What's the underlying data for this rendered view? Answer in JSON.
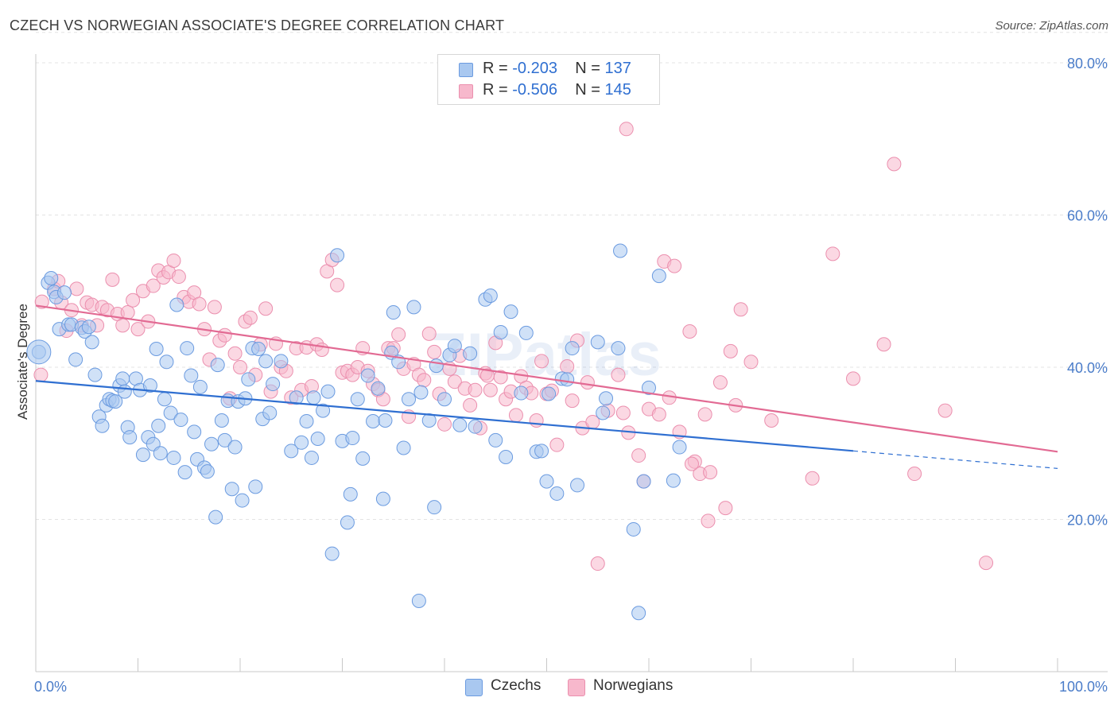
{
  "header": {
    "title": "CZECH VS NORWEGIAN ASSOCIATE'S DEGREE CORRELATION CHART",
    "source": "Source: ZipAtlas.com"
  },
  "watermark": "ZIPatlas",
  "legend": {
    "rows": [
      {
        "r_label": "R =",
        "r_value": "-0.203",
        "n_label": "N =",
        "n_value": "137"
      },
      {
        "r_label": "R =",
        "r_value": "-0.506",
        "n_label": "N =",
        "n_value": "145"
      }
    ]
  },
  "bottom_legend": {
    "czechs": "Czechs",
    "norwegians": "Norwegians"
  },
  "colors": {
    "czech_fill": "#a9c8f0",
    "czech_stroke": "#6b9be0",
    "czech_line": "#2f6fd1",
    "norwegian_fill": "#f7b8cc",
    "norwegian_stroke": "#eb8fae",
    "norwegian_line": "#e26a93",
    "grid": "#e3e3e3",
    "tick_label": "#4a7cc9"
  },
  "chart_data": {
    "type": "scatter",
    "title": "CZECH VS NORWEGIAN ASSOCIATE'S DEGREE CORRELATION CHART",
    "ylabel": "Associate's Degree",
    "xlabel": "",
    "xlim": [
      0,
      100
    ],
    "ylim": [
      0,
      84
    ],
    "x_tick_labels": [
      "0.0%",
      "100.0%"
    ],
    "y_ticks": [
      20,
      40,
      60,
      80
    ],
    "y_tick_labels": [
      "20.0%",
      "40.0%",
      "60.0%",
      "80.0%"
    ],
    "grid": true,
    "legend_position": "top-center",
    "series": [
      {
        "name": "Czechs",
        "R": -0.203,
        "N": 137,
        "trend": {
          "x_start": 0,
          "y_start": 38.2,
          "x_solid_end": 80,
          "y_solid_end": 29.0,
          "x_end": 100,
          "y_end": 26.7
        },
        "points": [
          [
            0.3,
            42
          ],
          [
            1.2,
            51.1
          ],
          [
            1.5,
            51.7
          ],
          [
            1.8,
            49.9
          ],
          [
            2,
            49.2
          ],
          [
            2.3,
            45
          ],
          [
            2.8,
            49.8
          ],
          [
            3.2,
            45.6
          ],
          [
            3.5,
            45.6
          ],
          [
            3.9,
            41
          ],
          [
            4.5,
            45.2
          ],
          [
            4.8,
            44.7
          ],
          [
            5.2,
            45.3
          ],
          [
            5.5,
            43.3
          ],
          [
            5.8,
            39
          ],
          [
            6.2,
            33.5
          ],
          [
            6.5,
            32.3
          ],
          [
            6.9,
            35
          ],
          [
            7.2,
            35.8
          ],
          [
            7.5,
            35.6
          ],
          [
            7.8,
            35.5
          ],
          [
            8.2,
            37.6
          ],
          [
            8.5,
            38.5
          ],
          [
            8.7,
            36.8
          ],
          [
            9,
            32.1
          ],
          [
            9.2,
            30.8
          ],
          [
            9.8,
            38.5
          ],
          [
            10.2,
            37
          ],
          [
            10.5,
            28.5
          ],
          [
            11,
            30.8
          ],
          [
            11.2,
            37.6
          ],
          [
            11.5,
            29.9
          ],
          [
            12,
            32.3
          ],
          [
            12.2,
            28.7
          ],
          [
            12.6,
            35.8
          ],
          [
            12.8,
            40.7
          ],
          [
            13.2,
            34
          ],
          [
            13.5,
            28.1
          ],
          [
            13.8,
            48.2
          ],
          [
            14.2,
            33.1
          ],
          [
            14.6,
            26.2
          ],
          [
            14.8,
            42.5
          ],
          [
            15.2,
            38.9
          ],
          [
            15.5,
            31.5
          ],
          [
            15.8,
            27.9
          ],
          [
            16.1,
            37.4
          ],
          [
            16.5,
            26.8
          ],
          [
            16.8,
            26.3
          ],
          [
            17.2,
            29.9
          ],
          [
            17.6,
            20.3
          ],
          [
            17.8,
            40.3
          ],
          [
            18.2,
            33
          ],
          [
            18.5,
            30.4
          ],
          [
            18.8,
            35.6
          ],
          [
            19.2,
            24
          ],
          [
            19.5,
            29.5
          ],
          [
            19.8,
            35.5
          ],
          [
            20.2,
            22.5
          ],
          [
            20.5,
            35.9
          ],
          [
            20.8,
            38.4
          ],
          [
            21.2,
            42.5
          ],
          [
            21.5,
            24.3
          ],
          [
            21.8,
            42.4
          ],
          [
            22.2,
            33.2
          ],
          [
            22.5,
            40.8
          ],
          [
            22.9,
            34
          ],
          [
            23.2,
            37.8
          ],
          [
            24,
            40.8
          ],
          [
            25,
            29
          ],
          [
            25.5,
            36
          ],
          [
            26,
            30.1
          ],
          [
            26.5,
            32.9
          ],
          [
            27,
            28.1
          ],
          [
            27.2,
            36
          ],
          [
            27.6,
            30.6
          ],
          [
            28.1,
            34.3
          ],
          [
            29,
            15.5
          ],
          [
            29.5,
            54.7
          ],
          [
            30,
            30.3
          ],
          [
            30.5,
            19.6
          ],
          [
            30.8,
            23.3
          ],
          [
            31,
            30.7
          ],
          [
            31.5,
            35.8
          ],
          [
            32,
            28
          ],
          [
            32.5,
            38.9
          ],
          [
            33,
            32.9
          ],
          [
            33.5,
            37.2
          ],
          [
            34,
            22.7
          ],
          [
            34.2,
            33
          ],
          [
            34.8,
            41.9
          ],
          [
            35.5,
            40.7
          ],
          [
            36,
            29.4
          ],
          [
            36.5,
            35.8
          ],
          [
            37,
            47.9
          ],
          [
            37.5,
            9.3
          ],
          [
            38.5,
            33
          ],
          [
            39,
            21.6
          ],
          [
            39.2,
            40.2
          ],
          [
            40,
            35.8
          ],
          [
            40.5,
            41.6
          ],
          [
            41,
            42.8
          ],
          [
            41.5,
            32.4
          ],
          [
            42.5,
            41.8
          ],
          [
            43,
            32.2
          ],
          [
            44,
            48.9
          ],
          [
            44.5,
            49.4
          ],
          [
            45,
            30.4
          ],
          [
            45.5,
            44.6
          ],
          [
            46,
            28.2
          ],
          [
            46.5,
            47.3
          ],
          [
            47.5,
            36.6
          ],
          [
            48,
            44.5
          ],
          [
            49,
            28.9
          ],
          [
            49.5,
            29
          ],
          [
            50,
            25
          ],
          [
            50.2,
            36.5
          ],
          [
            51,
            23.4
          ],
          [
            51.5,
            38.5
          ],
          [
            52,
            38.4
          ],
          [
            52.5,
            42.5
          ],
          [
            53,
            24.5
          ],
          [
            55,
            43.3
          ],
          [
            55.5,
            34
          ],
          [
            55.8,
            35.9
          ],
          [
            57,
            42.5
          ],
          [
            57.2,
            55.3
          ],
          [
            58.5,
            18.7
          ],
          [
            59,
            7.7
          ],
          [
            59.5,
            25
          ],
          [
            60,
            37.3
          ],
          [
            61,
            52
          ],
          [
            62.4,
            25.1
          ],
          [
            63,
            29.5
          ],
          [
            11.8,
            42.4
          ],
          [
            37.7,
            36.7
          ],
          [
            28.6,
            36.8
          ],
          [
            35,
            47.2
          ]
        ]
      },
      {
        "name": "Norwegians",
        "R": -0.506,
        "N": 145,
        "trend": {
          "x_start": 0,
          "y_start": 48.1,
          "x_end": 100,
          "y_end": 28.9
        },
        "points": [
          [
            0.6,
            48.6
          ],
          [
            0.5,
            39
          ],
          [
            1.8,
            50.3
          ],
          [
            2.2,
            51.3
          ],
          [
            2.5,
            48.5
          ],
          [
            3,
            44.8
          ],
          [
            3.5,
            47.5
          ],
          [
            4,
            50.3
          ],
          [
            4.5,
            45.5
          ],
          [
            5,
            48.5
          ],
          [
            5.5,
            48.2
          ],
          [
            6,
            45.5
          ],
          [
            6.5,
            47.9
          ],
          [
            7,
            47.5
          ],
          [
            7.5,
            51.5
          ],
          [
            8,
            47
          ],
          [
            8.5,
            45.5
          ],
          [
            9,
            47.2
          ],
          [
            9.5,
            48.8
          ],
          [
            10,
            45
          ],
          [
            10.5,
            50
          ],
          [
            11,
            46
          ],
          [
            11.5,
            50.7
          ],
          [
            12,
            52.7
          ],
          [
            12.5,
            51.8
          ],
          [
            13,
            52.5
          ],
          [
            13.5,
            54
          ],
          [
            14,
            51.9
          ],
          [
            14.5,
            49.2
          ],
          [
            15,
            48.6
          ],
          [
            15.5,
            49.8
          ],
          [
            16,
            48.3
          ],
          [
            16.5,
            45
          ],
          [
            17,
            41
          ],
          [
            17.5,
            47.9
          ],
          [
            18,
            43.5
          ],
          [
            18.5,
            44.2
          ],
          [
            19,
            35.9
          ],
          [
            19.5,
            41.8
          ],
          [
            20,
            40
          ],
          [
            20.5,
            46
          ],
          [
            21,
            46.5
          ],
          [
            21.5,
            39
          ],
          [
            22,
            43
          ],
          [
            22.5,
            47.7
          ],
          [
            23,
            36.8
          ],
          [
            23.5,
            43.1
          ],
          [
            24,
            40
          ],
          [
            24.5,
            39.5
          ],
          [
            25,
            36
          ],
          [
            25.5,
            42.5
          ],
          [
            26,
            37
          ],
          [
            26.5,
            42.6
          ],
          [
            27,
            37.5
          ],
          [
            27.5,
            43
          ],
          [
            28,
            42.3
          ],
          [
            28.5,
            52.6
          ],
          [
            29,
            54.1
          ],
          [
            29.5,
            50.8
          ],
          [
            30,
            39.3
          ],
          [
            30.5,
            39.5
          ],
          [
            31,
            39
          ],
          [
            31.5,
            40
          ],
          [
            32,
            42.5
          ],
          [
            32.5,
            39.5
          ],
          [
            33,
            37.8
          ],
          [
            33.5,
            37
          ],
          [
            34,
            35.8
          ],
          [
            34.5,
            42.5
          ],
          [
            35,
            42.5
          ],
          [
            35.5,
            44.3
          ],
          [
            36,
            39.8
          ],
          [
            36.5,
            33.5
          ],
          [
            37,
            40.4
          ],
          [
            37.5,
            39
          ],
          [
            38,
            38.3
          ],
          [
            38.5,
            44.4
          ],
          [
            39,
            42
          ],
          [
            39.5,
            36.5
          ],
          [
            40,
            32.5
          ],
          [
            40.5,
            39.8
          ],
          [
            41,
            38.1
          ],
          [
            41.5,
            41.5
          ],
          [
            42,
            37.2
          ],
          [
            42.5,
            35
          ],
          [
            43,
            37
          ],
          [
            43.5,
            32
          ],
          [
            44,
            39.2
          ],
          [
            44.5,
            37
          ],
          [
            45,
            43.2
          ],
          [
            45.5,
            38.7
          ],
          [
            46,
            35.8
          ],
          [
            46.5,
            36.8
          ],
          [
            47,
            33.7
          ],
          [
            47.5,
            38.8
          ],
          [
            48,
            37.3
          ],
          [
            48.5,
            36.6
          ],
          [
            49,
            33
          ],
          [
            49.5,
            40.8
          ],
          [
            50,
            36.5
          ],
          [
            50.5,
            36.9
          ],
          [
            51,
            29.8
          ],
          [
            52,
            40.1
          ],
          [
            52.5,
            35.6
          ],
          [
            53,
            43.5
          ],
          [
            53.5,
            32
          ],
          [
            54,
            38
          ],
          [
            54.5,
            32.8
          ],
          [
            55,
            14.2
          ],
          [
            56,
            34.3
          ],
          [
            57,
            39
          ],
          [
            57.5,
            34
          ],
          [
            58,
            31.4
          ],
          [
            59,
            28.4
          ],
          [
            59.5,
            25
          ],
          [
            60,
            34.5
          ],
          [
            61,
            33.8
          ],
          [
            61.5,
            53.9
          ],
          [
            62,
            36
          ],
          [
            62.5,
            53.3
          ],
          [
            63,
            31.5
          ],
          [
            64,
            44.7
          ],
          [
            64.5,
            27.6
          ],
          [
            65,
            26
          ],
          [
            65.5,
            33.8
          ],
          [
            66,
            26.2
          ],
          [
            67,
            38
          ],
          [
            67.5,
            21.5
          ],
          [
            68,
            42.1
          ],
          [
            68.5,
            35
          ],
          [
            69,
            47.6
          ],
          [
            70,
            40.7
          ],
          [
            76,
            25.4
          ],
          [
            78,
            54.9
          ],
          [
            80,
            38.5
          ],
          [
            83,
            43
          ],
          [
            84,
            66.7
          ],
          [
            86,
            26
          ],
          [
            89,
            34.3
          ],
          [
            93,
            14.3
          ],
          [
            57.8,
            71.3
          ],
          [
            64.2,
            27.3
          ],
          [
            65.8,
            19.8
          ],
          [
            72,
            33
          ],
          [
            44.2,
            38.9
          ]
        ]
      }
    ]
  }
}
